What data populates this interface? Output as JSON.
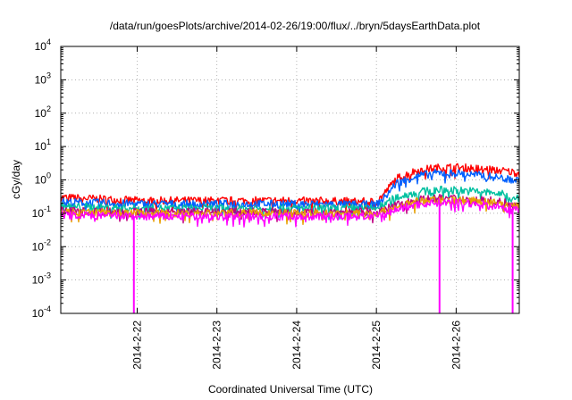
{
  "chart_data": {
    "type": "line",
    "title": "/data/run/goesPlots/archive/2014-02-26/19:00/flux/../bryn/5daysEarthData.plot",
    "xlabel": "Coordinated Universal Time (UTC)",
    "ylabel": "cGy/day",
    "yscale": "log",
    "ylim": [
      0.0001,
      10000
    ],
    "xlim": [
      "2014-02-21 01:00",
      "2014-02-26 19:00"
    ],
    "yticks": [
      {
        "base": "10",
        "exp": "4"
      },
      {
        "base": "10",
        "exp": "3"
      },
      {
        "base": "10",
        "exp": "2"
      },
      {
        "base": "10",
        "exp": "1"
      },
      {
        "base": "10",
        "exp": "0"
      },
      {
        "base": "10",
        "exp": "-1"
      },
      {
        "base": "10",
        "exp": "-2"
      },
      {
        "base": "10",
        "exp": "-3"
      },
      {
        "base": "10",
        "exp": "-4"
      }
    ],
    "xticks": [
      "2014-2-22",
      "2014-2-23",
      "2014-2-24",
      "2014-2-25",
      "2014-2-26"
    ],
    "grid": true,
    "legend": "none",
    "x": [
      "2014-02-21 01:00",
      "2014-02-22 00:00",
      "2014-02-23 00:00",
      "2014-02-24 00:00",
      "2014-02-25 00:00",
      "2014-02-25 02:00",
      "2014-02-25 06:00",
      "2014-02-25 12:00",
      "2014-02-25 18:00",
      "2014-02-26 00:00",
      "2014-02-26 06:00",
      "2014-02-26 12:00",
      "2014-02-26 19:00"
    ],
    "series": [
      {
        "color": "#ff0000",
        "values": [
          0.3,
          0.24,
          0.24,
          0.24,
          0.22,
          0.35,
          1.1,
          1.9,
          2.3,
          2.4,
          2.2,
          2.0,
          1.6
        ]
      },
      {
        "color": "#0060ff",
        "values": [
          0.22,
          0.19,
          0.19,
          0.19,
          0.18,
          0.26,
          0.8,
          1.3,
          1.6,
          1.6,
          1.4,
          1.2,
          0.95
        ]
      },
      {
        "color": "#00c0a0",
        "values": [
          0.16,
          0.14,
          0.14,
          0.14,
          0.14,
          0.18,
          0.3,
          0.42,
          0.5,
          0.5,
          0.45,
          0.4,
          0.3
        ]
      },
      {
        "color": "#c00080",
        "values": [
          0.12,
          0.11,
          0.11,
          0.11,
          0.11,
          0.12,
          0.18,
          0.25,
          0.28,
          0.28,
          0.26,
          0.23,
          0.19
        ]
      },
      {
        "color": "#e8a000",
        "values": [
          0.11,
          0.1,
          0.1,
          0.1,
          0.1,
          0.11,
          0.16,
          0.22,
          0.25,
          0.25,
          0.23,
          0.2,
          0.16
        ]
      },
      {
        "color": "#ff00ff",
        "values": [
          0.09,
          0.08,
          0.08,
          0.08,
          0.08,
          0.09,
          0.13,
          0.18,
          0.21,
          0.21,
          0.19,
          0.16,
          0.13
        ]
      }
    ],
    "dropouts": [
      {
        "series_color": "#ff00ff",
        "x": "2014-02-21 23:00",
        "value": 0.0001
      },
      {
        "series_color": "#ff00ff",
        "x": "2014-02-25 19:00",
        "value": 0.0001
      },
      {
        "series_color": "#ff00ff",
        "x": "2014-02-26 17:00",
        "value": 0.0001
      }
    ]
  }
}
